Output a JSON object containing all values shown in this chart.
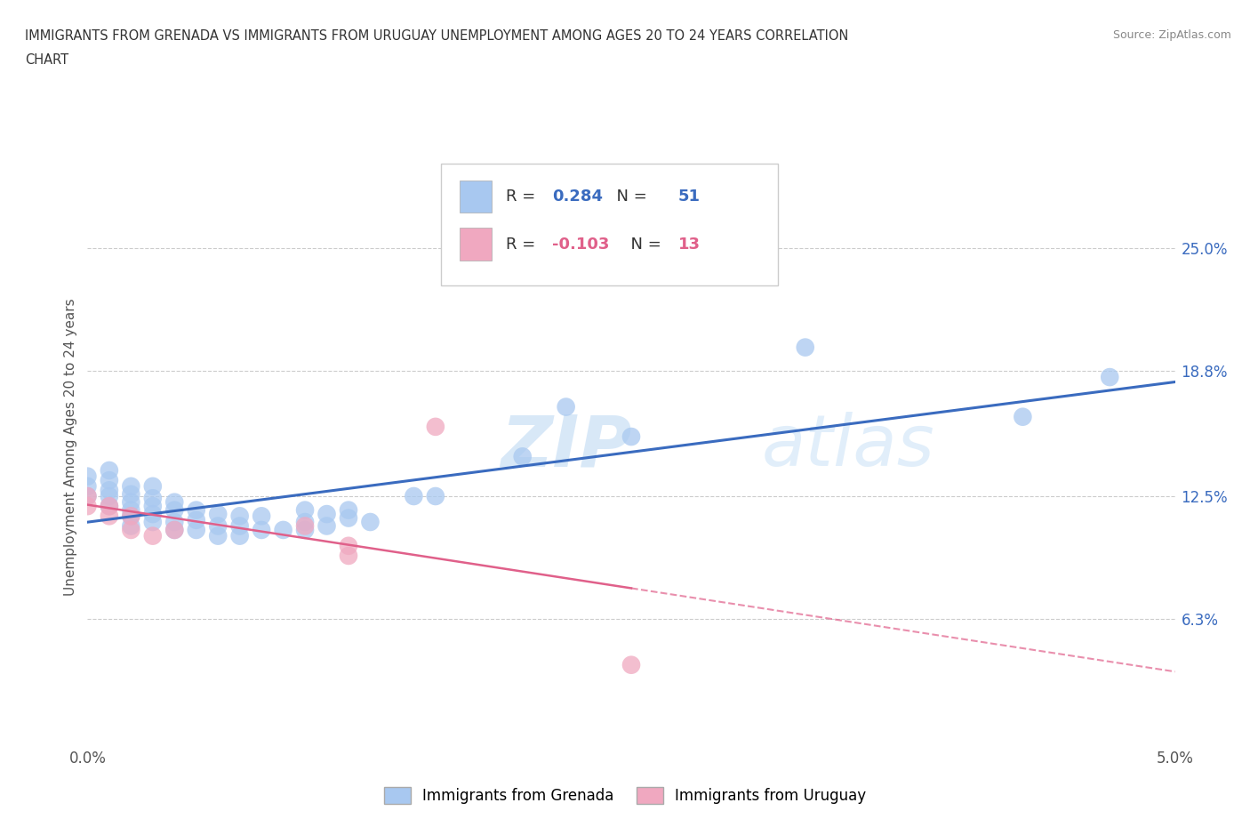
{
  "title_line1": "IMMIGRANTS FROM GRENADA VS IMMIGRANTS FROM URUGUAY UNEMPLOYMENT AMONG AGES 20 TO 24 YEARS CORRELATION",
  "title_line2": "CHART",
  "source": "Source: ZipAtlas.com",
  "ylabel": "Unemployment Among Ages 20 to 24 years",
  "xlim": [
    0.0,
    0.05
  ],
  "ylim": [
    0.0,
    0.3
  ],
  "x_ticks": [
    0.0,
    0.01,
    0.02,
    0.03,
    0.04,
    0.05
  ],
  "x_tick_labels": [
    "0.0%",
    "",
    "",
    "",
    "",
    "5.0%"
  ],
  "y_tick_labels_right": [
    "6.3%",
    "12.5%",
    "18.8%",
    "25.0%"
  ],
  "y_tick_values_right": [
    0.063,
    0.125,
    0.188,
    0.25
  ],
  "grenada_R": "0.284",
  "grenada_N": "51",
  "uruguay_R": "-0.103",
  "uruguay_N": "13",
  "grenada_color": "#a8c8f0",
  "uruguay_color": "#f0a8c0",
  "grenada_line_color": "#3a6bbf",
  "uruguay_line_color": "#e0608a",
  "watermark_zip": "ZIP",
  "watermark_atlas": "atlas",
  "grenada_x": [
    0.0,
    0.0,
    0.0,
    0.001,
    0.001,
    0.001,
    0.001,
    0.001,
    0.002,
    0.002,
    0.002,
    0.002,
    0.002,
    0.002,
    0.003,
    0.003,
    0.003,
    0.003,
    0.003,
    0.004,
    0.004,
    0.004,
    0.004,
    0.005,
    0.005,
    0.005,
    0.006,
    0.006,
    0.006,
    0.007,
    0.007,
    0.007,
    0.008,
    0.008,
    0.009,
    0.01,
    0.01,
    0.01,
    0.011,
    0.011,
    0.012,
    0.012,
    0.013,
    0.015,
    0.016,
    0.02,
    0.022,
    0.025,
    0.033,
    0.043,
    0.047
  ],
  "grenada_y": [
    0.125,
    0.13,
    0.135,
    0.12,
    0.125,
    0.128,
    0.133,
    0.138,
    0.11,
    0.115,
    0.118,
    0.122,
    0.126,
    0.13,
    0.112,
    0.116,
    0.12,
    0.124,
    0.13,
    0.108,
    0.112,
    0.118,
    0.122,
    0.108,
    0.113,
    0.118,
    0.105,
    0.11,
    0.116,
    0.105,
    0.11,
    0.115,
    0.108,
    0.115,
    0.108,
    0.108,
    0.112,
    0.118,
    0.11,
    0.116,
    0.114,
    0.118,
    0.112,
    0.125,
    0.125,
    0.145,
    0.17,
    0.155,
    0.2,
    0.165,
    0.185
  ],
  "uruguay_x": [
    0.0,
    0.0,
    0.001,
    0.001,
    0.002,
    0.002,
    0.003,
    0.004,
    0.01,
    0.012,
    0.012,
    0.016,
    0.025
  ],
  "uruguay_y": [
    0.12,
    0.125,
    0.115,
    0.12,
    0.108,
    0.115,
    0.105,
    0.108,
    0.11,
    0.095,
    0.1,
    0.16,
    0.04
  ],
  "legend_grenada_label": "Immigrants from Grenada",
  "legend_uruguay_label": "Immigrants from Uruguay"
}
